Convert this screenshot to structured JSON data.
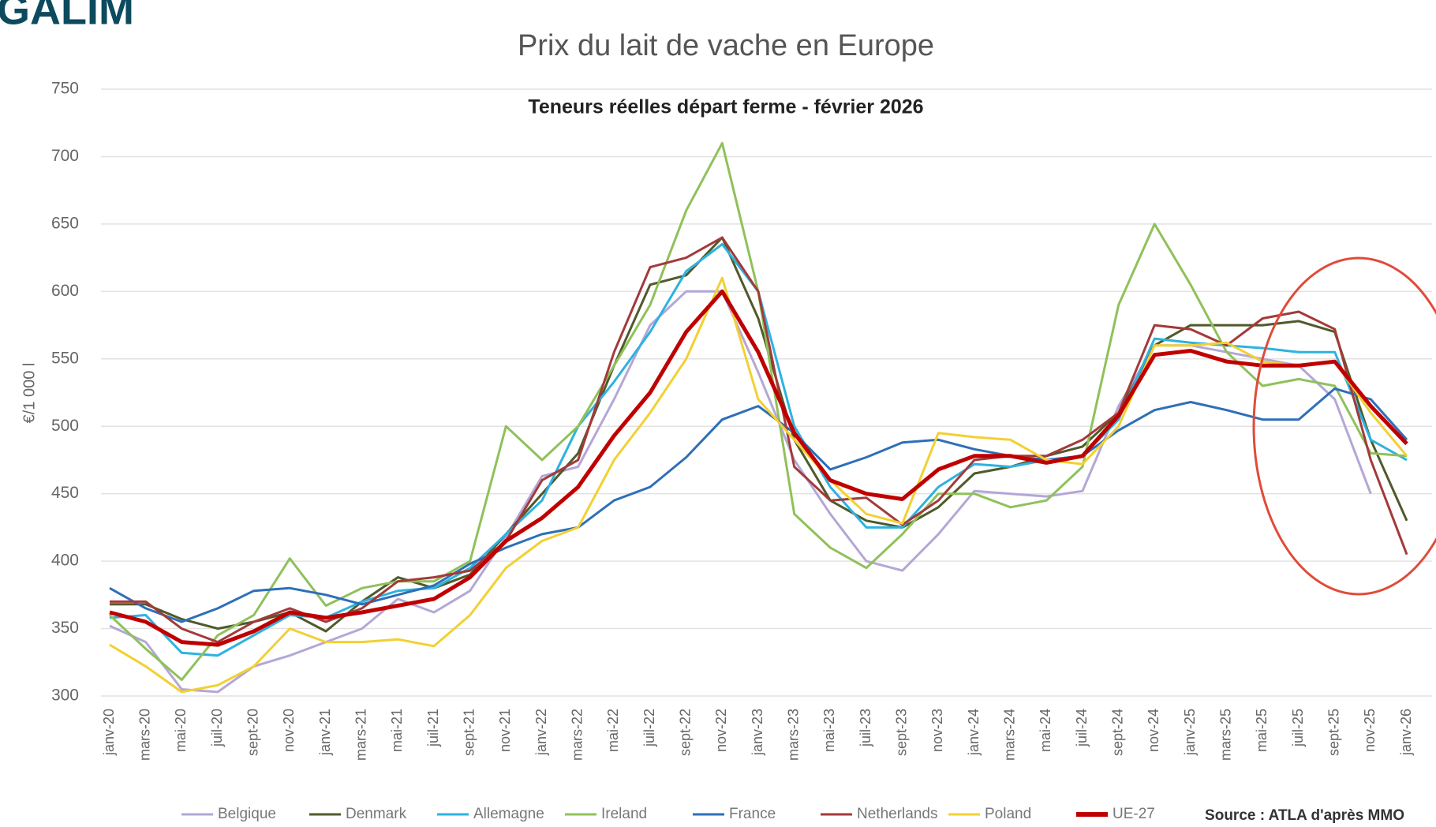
{
  "logo": "GALIM",
  "chart_data": {
    "type": "line",
    "title": "Prix du lait de vache en Europe",
    "subtitle": "Teneurs réelles départ ferme - février 2026",
    "y_label": "€/1 000 l",
    "source": "Source : ATLA d'après MMO",
    "categories": [
      "janv-20",
      "mars-20",
      "mai-20",
      "juil-20",
      "sept-20",
      "nov-20",
      "janv-21",
      "mars-21",
      "mai-21",
      "juil-21",
      "sept-21",
      "nov-21",
      "janv-22",
      "mars-22",
      "mai-22",
      "juil-22",
      "sept-22",
      "nov-22",
      "janv-23",
      "mars-23",
      "mai-23",
      "juil-23",
      "sept-23",
      "nov-23",
      "janv-24",
      "mars-24",
      "mai-24",
      "juil-24",
      "sept-24",
      "nov-24",
      "janv-25",
      "mars-25",
      "mai-25",
      "juil-25",
      "sept-25",
      "nov-25",
      "janv-26"
    ],
    "ylim": [
      300,
      750
    ],
    "yticks": [
      300,
      350,
      400,
      450,
      500,
      550,
      600,
      650,
      700,
      750
    ],
    "grid": true,
    "series": [
      {
        "name": "Belgique",
        "color": "#b4a7d6",
        "values": [
          352,
          340,
          305,
          303,
          322,
          330,
          340,
          350,
          372,
          362,
          378,
          418,
          463,
          470,
          520,
          575,
          600,
          600,
          540,
          475,
          435,
          400,
          393,
          420,
          452,
          450,
          448,
          452,
          515,
          560,
          560,
          555,
          550,
          545,
          520,
          450,
          null
        ]
      },
      {
        "name": "Denmark",
        "color": "#4f5a2a",
        "values": [
          368,
          368,
          357,
          350,
          355,
          362,
          348,
          370,
          388,
          380,
          390,
          420,
          450,
          480,
          545,
          605,
          612,
          640,
          580,
          490,
          445,
          430,
          425,
          440,
          465,
          470,
          478,
          485,
          510,
          560,
          575,
          575,
          575,
          578,
          570,
          490,
          430
        ]
      },
      {
        "name": "Allemagne",
        "color": "#2eb2e0",
        "values": [
          358,
          360,
          332,
          330,
          345,
          360,
          358,
          370,
          378,
          380,
          395,
          420,
          445,
          500,
          533,
          570,
          615,
          635,
          600,
          500,
          455,
          425,
          425,
          455,
          472,
          470,
          475,
          478,
          505,
          565,
          562,
          560,
          558,
          555,
          555,
          490,
          475
        ]
      },
      {
        "name": "Ireland",
        "color": "#8fc15a",
        "values": [
          360,
          335,
          312,
          345,
          360,
          402,
          367,
          380,
          385,
          385,
          400,
          500,
          475,
          500,
          545,
          590,
          660,
          710,
          600,
          435,
          410,
          395,
          420,
          450,
          450,
          440,
          445,
          470,
          590,
          650,
          605,
          555,
          530,
          535,
          530,
          480,
          478
        ]
      },
      {
        "name": "France",
        "color": "#2e6fb7",
        "values": [
          380,
          365,
          355,
          365,
          378,
          380,
          375,
          368,
          375,
          382,
          398,
          410,
          420,
          425,
          445,
          455,
          477,
          505,
          515,
          495,
          468,
          477,
          488,
          490,
          483,
          478,
          475,
          478,
          497,
          512,
          518,
          512,
          505,
          505,
          528,
          520,
          490
        ]
      },
      {
        "name": "Netherlands",
        "color": "#a33a3a",
        "values": [
          370,
          370,
          350,
          340,
          355,
          365,
          355,
          365,
          385,
          388,
          393,
          415,
          460,
          475,
          555,
          618,
          625,
          640,
          600,
          470,
          445,
          447,
          427,
          445,
          475,
          478,
          478,
          490,
          510,
          575,
          572,
          560,
          580,
          585,
          572,
          475,
          405
        ]
      },
      {
        "name": "Poland",
        "color": "#f2d033",
        "values": [
          338,
          322,
          303,
          308,
          322,
          350,
          340,
          340,
          342,
          337,
          360,
          395,
          415,
          425,
          475,
          510,
          550,
          610,
          520,
          490,
          460,
          435,
          428,
          495,
          492,
          490,
          475,
          472,
          500,
          560,
          560,
          562,
          548,
          545,
          548,
          510,
          478
        ]
      },
      {
        "name": "UE-27",
        "color": "#c00000",
        "values": [
          362,
          355,
          340,
          338,
          348,
          362,
          358,
          362,
          367,
          372,
          388,
          415,
          432,
          455,
          493,
          525,
          570,
          600,
          555,
          495,
          460,
          450,
          446,
          468,
          478,
          478,
          473,
          478,
          508,
          553,
          556,
          548,
          545,
          545,
          548,
          515,
          487
        ]
      }
    ]
  }
}
